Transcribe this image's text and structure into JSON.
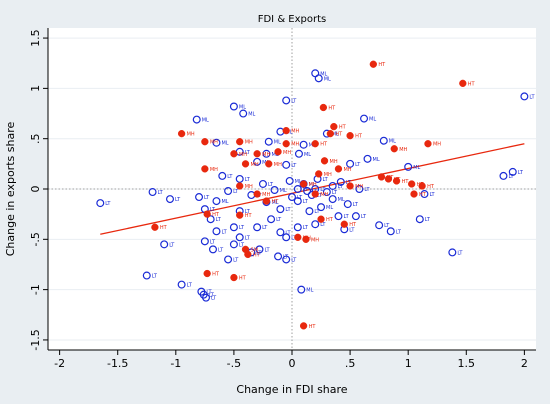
{
  "chart_data": {
    "type": "scatter",
    "title": "FDI & Exports",
    "xlabel": "Change in FDI share",
    "ylabel": "Change in exports share",
    "xlim": [
      -2.1,
      2.1
    ],
    "ylim": [
      -1.6,
      1.6
    ],
    "x_ticks": [
      -2,
      -1.5,
      -1,
      -0.5,
      0,
      0.5,
      1,
      1.5,
      2
    ],
    "x_tick_labels": [
      "-2",
      "-1.5",
      "-1",
      "-.5",
      "0",
      ".5",
      "1",
      "1.5",
      "2"
    ],
    "y_ticks": [
      -1.5,
      -1,
      -0.5,
      0,
      0.5,
      1,
      1.5
    ],
    "y_tick_labels": [
      "-1.5",
      "-1",
      "-.5",
      "0",
      ".5",
      "1",
      "1.5"
    ],
    "grid": true,
    "reference_lines": {
      "x": 0,
      "y": 0
    },
    "colors": {
      "background": "#e9eef2",
      "plot_background": "#ffffff",
      "open_marker": "#1a2bd6",
      "filled_marker": "#e8280e",
      "fit_line": "#e8280e",
      "axis": "#000000",
      "grid": "#e9eef2"
    },
    "fit_line": {
      "x": [
        -1.65,
        2.0
      ],
      "y": [
        -0.45,
        0.45
      ]
    },
    "series": [
      {
        "marker": "open-circle",
        "points": [
          {
            "x": 2.0,
            "y": 0.92,
            "label": "LT"
          },
          {
            "x": 0.2,
            "y": 1.15,
            "label": "ML"
          },
          {
            "x": 0.23,
            "y": 1.1,
            "label": "ML"
          },
          {
            "x": -0.05,
            "y": 0.88,
            "label": "LT"
          },
          {
            "x": -0.5,
            "y": 0.82,
            "label": "ML"
          },
          {
            "x": -0.42,
            "y": 0.75,
            "label": "ML"
          },
          {
            "x": -0.82,
            "y": 0.69,
            "label": "ML"
          },
          {
            "x": 0.62,
            "y": 0.7,
            "label": "ML"
          },
          {
            "x": -0.1,
            "y": 0.57,
            "label": "ML"
          },
          {
            "x": 0.3,
            "y": 0.55,
            "label": "ML"
          },
          {
            "x": 0.79,
            "y": 0.48,
            "label": "ML"
          },
          {
            "x": -0.65,
            "y": 0.46,
            "label": "ML"
          },
          {
            "x": -0.2,
            "y": 0.47,
            "label": "ML"
          },
          {
            "x": 0.1,
            "y": 0.44,
            "label": "ML"
          },
          {
            "x": -0.45,
            "y": 0.37,
            "label": "LT"
          },
          {
            "x": -0.22,
            "y": 0.35,
            "label": "ML"
          },
          {
            "x": 0.06,
            "y": 0.35,
            "label": "ML"
          },
          {
            "x": 0.65,
            "y": 0.3,
            "label": "ML"
          },
          {
            "x": -0.3,
            "y": 0.27,
            "label": "ML"
          },
          {
            "x": -0.05,
            "y": 0.24,
            "label": "LT"
          },
          {
            "x": 0.5,
            "y": 0.25,
            "label": "LT"
          },
          {
            "x": 1.0,
            "y": 0.22,
            "label": "ML"
          },
          {
            "x": 1.9,
            "y": 0.17,
            "label": "LT"
          },
          {
            "x": 1.82,
            "y": 0.13,
            "label": "LT"
          },
          {
            "x": -0.6,
            "y": 0.13,
            "label": "LT"
          },
          {
            "x": -0.45,
            "y": 0.1,
            "label": "LT"
          },
          {
            "x": -0.02,
            "y": 0.08,
            "label": "ML"
          },
          {
            "x": 0.22,
            "y": 0.1,
            "label": "LT"
          },
          {
            "x": 0.42,
            "y": 0.07,
            "label": "LT"
          },
          {
            "x": -0.25,
            "y": 0.05,
            "label": "LT"
          },
          {
            "x": 0.1,
            "y": 0.05,
            "label": "ML"
          },
          {
            "x": 0.35,
            "y": 0.03,
            "label": "LT"
          },
          {
            "x": 0.05,
            "y": 0.0,
            "label": "LT"
          },
          {
            "x": 0.2,
            "y": 0.0,
            "label": "LT"
          },
          {
            "x": -1.2,
            "y": -0.03,
            "label": "LT"
          },
          {
            "x": -0.55,
            "y": -0.02,
            "label": "LT"
          },
          {
            "x": -0.15,
            "y": -0.01,
            "label": "ML"
          },
          {
            "x": 0.13,
            "y": -0.02,
            "label": "LT"
          },
          {
            "x": 0.3,
            "y": -0.03,
            "label": "LT"
          },
          {
            "x": 0.58,
            "y": 0.0,
            "label": "LT"
          },
          {
            "x": -0.8,
            "y": -0.08,
            "label": "LT"
          },
          {
            "x": -0.35,
            "y": -0.06,
            "label": "LT"
          },
          {
            "x": 0.0,
            "y": -0.08,
            "label": "LT"
          },
          {
            "x": 0.17,
            "y": -0.06,
            "label": "LT"
          },
          {
            "x": 1.14,
            "y": -0.05,
            "label": "LT"
          },
          {
            "x": -1.65,
            "y": -0.14,
            "label": "LT"
          },
          {
            "x": -1.05,
            "y": -0.1,
            "label": "LT"
          },
          {
            "x": -0.65,
            "y": -0.12,
            "label": "ML"
          },
          {
            "x": -0.22,
            "y": -0.13,
            "label": "ML"
          },
          {
            "x": 0.05,
            "y": -0.12,
            "label": "LT"
          },
          {
            "x": 0.35,
            "y": -0.1,
            "label": "ML"
          },
          {
            "x": 0.48,
            "y": -0.15,
            "label": "LT"
          },
          {
            "x": -0.75,
            "y": -0.2,
            "label": "LT"
          },
          {
            "x": -0.45,
            "y": -0.22,
            "label": "LT"
          },
          {
            "x": -0.1,
            "y": -0.2,
            "label": "LT"
          },
          {
            "x": 0.15,
            "y": -0.22,
            "label": "LT"
          },
          {
            "x": 0.25,
            "y": -0.18,
            "label": "ML"
          },
          {
            "x": -0.7,
            "y": -0.3,
            "label": "LT"
          },
          {
            "x": -0.18,
            "y": -0.3,
            "label": "LT"
          },
          {
            "x": 0.4,
            "y": -0.27,
            "label": "LT"
          },
          {
            "x": 0.55,
            "y": -0.27,
            "label": "LT"
          },
          {
            "x": 1.1,
            "y": -0.3,
            "label": "LT"
          },
          {
            "x": -0.5,
            "y": -0.38,
            "label": "LT"
          },
          {
            "x": -0.3,
            "y": -0.38,
            "label": "LT"
          },
          {
            "x": 0.05,
            "y": -0.38,
            "label": "LT"
          },
          {
            "x": 0.2,
            "y": -0.35,
            "label": "LT"
          },
          {
            "x": 0.75,
            "y": -0.36,
            "label": "LT"
          },
          {
            "x": -0.65,
            "y": -0.42,
            "label": "LT"
          },
          {
            "x": -0.1,
            "y": -0.43,
            "label": "LT"
          },
          {
            "x": 0.45,
            "y": -0.4,
            "label": "LT"
          },
          {
            "x": 0.85,
            "y": -0.42,
            "label": "LT"
          },
          {
            "x": -0.45,
            "y": -0.48,
            "label": "LT"
          },
          {
            "x": -0.05,
            "y": -0.48,
            "label": "LT"
          },
          {
            "x": -1.1,
            "y": -0.55,
            "label": "LT"
          },
          {
            "x": -0.75,
            "y": -0.52,
            "label": "LT"
          },
          {
            "x": -0.5,
            "y": -0.55,
            "label": "LT"
          },
          {
            "x": -0.68,
            "y": -0.6,
            "label": "LT"
          },
          {
            "x": -0.28,
            "y": -0.6,
            "label": "LT"
          },
          {
            "x": -0.35,
            "y": -0.63,
            "label": "LT"
          },
          {
            "x": 1.38,
            "y": -0.63,
            "label": "LT"
          },
          {
            "x": -0.12,
            "y": -0.67,
            "label": "LT"
          },
          {
            "x": -0.55,
            "y": -0.7,
            "label": "LT"
          },
          {
            "x": -0.05,
            "y": -0.7,
            "label": "LT"
          },
          {
            "x": -1.25,
            "y": -0.86,
            "label": "LT"
          },
          {
            "x": -0.95,
            "y": -0.95,
            "label": "LT"
          },
          {
            "x": -0.78,
            "y": -1.02,
            "label": "LT"
          },
          {
            "x": -0.76,
            "y": -1.05,
            "label": "LT"
          },
          {
            "x": -0.74,
            "y": -1.08,
            "label": "LT"
          },
          {
            "x": 0.08,
            "y": -1.0,
            "label": "ML"
          }
        ]
      },
      {
        "marker": "filled-circle",
        "points": [
          {
            "x": 0.7,
            "y": 1.24,
            "label": "HT"
          },
          {
            "x": 1.47,
            "y": 1.05,
            "label": "HT"
          },
          {
            "x": 0.27,
            "y": 0.81,
            "label": "HT"
          },
          {
            "x": 0.36,
            "y": 0.62,
            "label": "HT"
          },
          {
            "x": -0.95,
            "y": 0.55,
            "label": "MH"
          },
          {
            "x": -0.05,
            "y": 0.58,
            "label": "MH"
          },
          {
            "x": 0.33,
            "y": 0.55,
            "label": "HT"
          },
          {
            "x": 0.5,
            "y": 0.53,
            "label": "HT"
          },
          {
            "x": -0.75,
            "y": 0.47,
            "label": "MH"
          },
          {
            "x": -0.45,
            "y": 0.47,
            "label": "MH"
          },
          {
            "x": -0.05,
            "y": 0.45,
            "label": "MH"
          },
          {
            "x": 0.2,
            "y": 0.45,
            "label": "HT"
          },
          {
            "x": 1.17,
            "y": 0.45,
            "label": "MH"
          },
          {
            "x": 0.88,
            "y": 0.4,
            "label": "MH"
          },
          {
            "x": -0.5,
            "y": 0.35,
            "label": "MH"
          },
          {
            "x": -0.3,
            "y": 0.35,
            "label": "MH"
          },
          {
            "x": -0.12,
            "y": 0.37,
            "label": "MH"
          },
          {
            "x": 0.28,
            "y": 0.28,
            "label": "MH"
          },
          {
            "x": -0.75,
            "y": 0.2,
            "label": "MH"
          },
          {
            "x": -0.4,
            "y": 0.25,
            "label": "MH"
          },
          {
            "x": -0.2,
            "y": 0.25,
            "label": "MH"
          },
          {
            "x": 0.4,
            "y": 0.2,
            "label": "MH"
          },
          {
            "x": 0.23,
            "y": 0.15,
            "label": "MH"
          },
          {
            "x": 0.77,
            "y": 0.12,
            "label": "HT"
          },
          {
            "x": 0.83,
            "y": 0.1,
            "label": "HT"
          },
          {
            "x": 0.9,
            "y": 0.08,
            "label": "HT"
          },
          {
            "x": 0.1,
            "y": 0.05,
            "label": "MH"
          },
          {
            "x": 1.03,
            "y": 0.05,
            "label": "HT"
          },
          {
            "x": 1.12,
            "y": 0.03,
            "label": "HT"
          },
          {
            "x": -0.45,
            "y": 0.03,
            "label": "MH"
          },
          {
            "x": 0.5,
            "y": 0.03,
            "label": "MH"
          },
          {
            "x": 1.05,
            "y": -0.05,
            "label": "HT"
          },
          {
            "x": -0.3,
            "y": -0.05,
            "label": "MH"
          },
          {
            "x": 0.2,
            "y": -0.05,
            "label": "MH"
          },
          {
            "x": -0.22,
            "y": -0.12,
            "label": "HT"
          },
          {
            "x": -0.73,
            "y": -0.25,
            "label": "HT"
          },
          {
            "x": -0.45,
            "y": -0.26,
            "label": "HT"
          },
          {
            "x": 0.25,
            "y": -0.3,
            "label": "HT"
          },
          {
            "x": -1.18,
            "y": -0.38,
            "label": "HT"
          },
          {
            "x": 0.45,
            "y": -0.35,
            "label": "HT"
          },
          {
            "x": 0.05,
            "y": -0.48,
            "label": "MH"
          },
          {
            "x": 0.12,
            "y": -0.5,
            "label": "MH"
          },
          {
            "x": -0.4,
            "y": -0.6,
            "label": "SM"
          },
          {
            "x": -0.38,
            "y": -0.65,
            "label": "HT"
          },
          {
            "x": -0.73,
            "y": -0.84,
            "label": "HT"
          },
          {
            "x": -0.5,
            "y": -0.88,
            "label": "HT"
          },
          {
            "x": 0.1,
            "y": -1.36,
            "label": "HT"
          }
        ]
      }
    ]
  }
}
